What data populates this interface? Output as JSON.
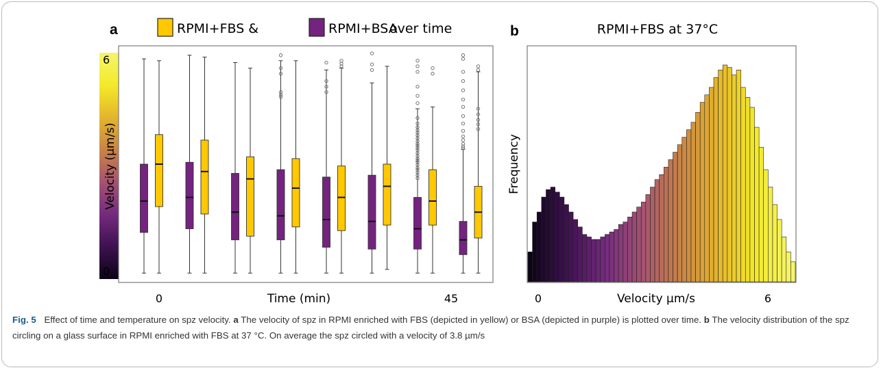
{
  "chart_data": [
    {
      "type": "box",
      "panel_letter": "a",
      "title": "over time",
      "legend": [
        {
          "name": "RPMI+FBS",
          "color": "#ffc800",
          "suffix": " &"
        },
        {
          "name": "RPMI+BSA",
          "color": "#74237f",
          "suffix": ""
        }
      ],
      "ylabel": "Velocity (µm/s)",
      "xlabel": "Time (min)",
      "x_tick_labels": [
        "0",
        "45"
      ],
      "ylim": [
        0,
        6
      ],
      "colorbar_ticks": [
        "6",
        "0"
      ],
      "colorbar_gradient": [
        "#0c0416",
        "#3e1150",
        "#742b7e",
        "#a55370",
        "#c98445",
        "#e4b52c",
        "#f4ea29",
        "#f5f56c"
      ],
      "groups": [
        {
          "bsa": {
            "min": 0.05,
            "q1": 1.15,
            "median": 2.0,
            "q3": 3.0,
            "max": 5.85,
            "outliers": []
          },
          "fbs": {
            "min": 0.05,
            "q1": 1.85,
            "median": 3.0,
            "q3": 3.8,
            "max": 5.8,
            "outliers": []
          }
        },
        {
          "bsa": {
            "min": 0.05,
            "q1": 1.25,
            "median": 2.1,
            "q3": 3.05,
            "max": 5.95,
            "outliers": []
          },
          "fbs": {
            "min": 0.05,
            "q1": 1.65,
            "median": 2.8,
            "q3": 3.65,
            "max": 5.9,
            "outliers": []
          }
        },
        {
          "bsa": {
            "min": 0.05,
            "q1": 0.95,
            "median": 1.7,
            "q3": 2.75,
            "max": 5.75,
            "outliers": []
          },
          "fbs": {
            "min": 0.05,
            "q1": 1.05,
            "median": 2.6,
            "q3": 3.2,
            "max": 5.6,
            "outliers": []
          }
        },
        {
          "bsa": {
            "min": 0.05,
            "q1": 0.95,
            "median": 1.6,
            "q3": 2.85,
            "max": 5.8,
            "outliers": [
              5.95,
              5.6,
              5.45,
              4.95,
              4.88,
              4.82
            ]
          },
          "fbs": {
            "min": 0.05,
            "q1": 1.3,
            "median": 2.35,
            "q3": 3.15,
            "max": 5.8,
            "outliers": []
          }
        },
        {
          "bsa": {
            "min": 0.05,
            "q1": 0.75,
            "median": 1.5,
            "q3": 2.65,
            "max": 5.55,
            "outliers": [
              5.75,
              5.25,
              5.1,
              4.95
            ]
          },
          "fbs": {
            "min": 0.05,
            "q1": 1.2,
            "median": 2.1,
            "q3": 2.95,
            "max": 5.6,
            "outliers": [
              5.8,
              5.72,
              5.65
            ]
          }
        },
        {
          "bsa": {
            "min": 0.05,
            "q1": 0.7,
            "median": 1.45,
            "q3": 2.7,
            "max": 5.2,
            "outliers": [
              6.0,
              5.7,
              5.55
            ]
          },
          "fbs": {
            "min": 0.15,
            "q1": 1.35,
            "median": 2.4,
            "q3": 3.0,
            "max": 5.65,
            "outliers": []
          }
        },
        {
          "bsa": {
            "min": 0.05,
            "q1": 0.7,
            "median": 1.25,
            "q3": 2.1,
            "max": 4.5,
            "outliers": [
              5.8,
              5.65,
              5.5,
              5.1,
              4.85,
              4.65,
              4.25,
              4.1,
              4.0,
              3.92,
              3.85,
              3.78,
              3.7,
              3.62,
              3.55,
              3.5,
              3.44,
              3.38,
              3.3,
              3.22,
              3.15,
              3.1,
              3.05,
              2.98,
              2.9,
              2.85,
              2.78,
              2.7,
              2.62
            ]
          },
          "fbs": {
            "min": 0.05,
            "q1": 1.35,
            "median": 2.0,
            "q3": 2.85,
            "max": 4.55,
            "outliers": [
              5.6,
              5.45
            ]
          }
        },
        {
          "bsa": {
            "min": 0.05,
            "q1": 0.55,
            "median": 0.95,
            "q3": 1.45,
            "max": 3.4,
            "outliers": [
              5.95,
              5.85,
              5.5,
              5.25,
              5.0,
              4.75,
              4.55,
              4.3,
              4.1,
              3.9,
              3.75,
              3.65,
              3.55,
              3.48,
              3.43
            ]
          },
          "fbs": {
            "min": 0.05,
            "q1": 1.0,
            "median": 1.7,
            "q3": 2.4,
            "max": 5.5,
            "outliers": [
              5.65,
              5.55,
              4.5,
              4.35,
              4.2,
              4.08,
              3.95
            ]
          }
        }
      ]
    },
    {
      "type": "bar",
      "panel_letter": "b",
      "title": "RPMI+FBS at 37°C",
      "xlabel": "Velocity µm/s",
      "ylabel": "Frequency",
      "x_tick_labels": [
        "0",
        "6"
      ],
      "xlim": [
        0,
        6
      ],
      "values": [
        0.12,
        0.24,
        0.28,
        0.34,
        0.37,
        0.38,
        0.36,
        0.34,
        0.31,
        0.28,
        0.25,
        0.22,
        0.19,
        0.18,
        0.17,
        0.17,
        0.18,
        0.19,
        0.2,
        0.21,
        0.23,
        0.24,
        0.26,
        0.28,
        0.3,
        0.32,
        0.35,
        0.38,
        0.41,
        0.43,
        0.46,
        0.49,
        0.52,
        0.55,
        0.58,
        0.61,
        0.64,
        0.68,
        0.72,
        0.75,
        0.78,
        0.82,
        0.85,
        0.87,
        0.86,
        0.83,
        0.85,
        0.78,
        0.74,
        0.7,
        0.62,
        0.54,
        0.45,
        0.38,
        0.31,
        0.25,
        0.18,
        0.12,
        0.08
      ],
      "colors": [
        "#0c0416",
        "#3e1150",
        "#742b7e",
        "#a55370",
        "#c98445",
        "#e4b52c",
        "#f4ea29",
        "#f5f56c"
      ]
    }
  ],
  "caption": {
    "figure_label": "Fig. 5",
    "title": "Effect of time and temperature on spz velocity.",
    "part_a_label": "a",
    "part_a_text": "The velocity of spz in RPMI enriched with FBS (depicted in yellow) or BSA (depicted in purple) is plotted over time.",
    "part_b_label": "b",
    "part_b_text": "The velocity distribution of the spz circling on a glass surface in RPMI enriched with FBS at 37 °C. On average the spz circled with a velocity of 3.8 µm/s"
  }
}
